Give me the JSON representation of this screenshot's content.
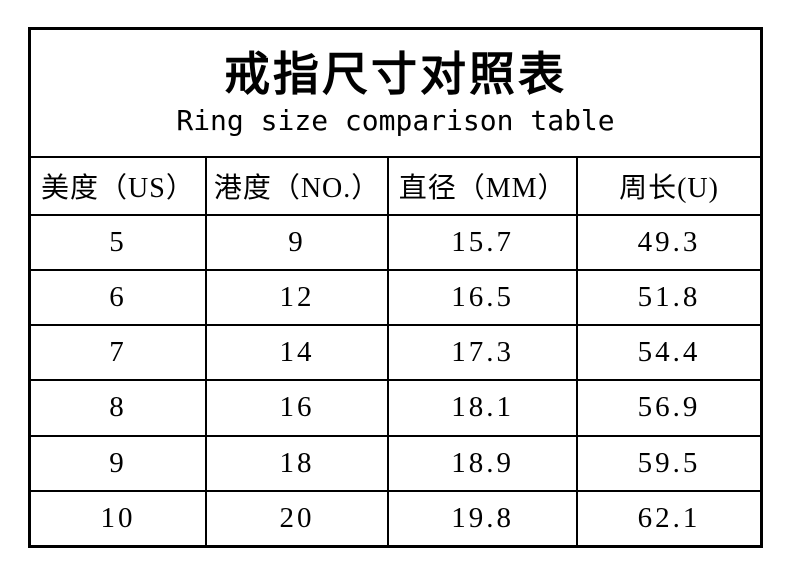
{
  "page": {
    "title_cn": "戒指尺寸对照表",
    "title_en": "Ring size comparison table"
  },
  "table": {
    "columns": [
      "美度（US）",
      "港度（NO.）",
      "直径（MM）",
      "周长(U)"
    ],
    "rows": [
      [
        "5",
        "9",
        "15.7",
        "49.3"
      ],
      [
        "6",
        "12",
        "16.5",
        "51.8"
      ],
      [
        "7",
        "14",
        "17.3",
        "54.4"
      ],
      [
        "8",
        "16",
        "18.1",
        "56.9"
      ],
      [
        "9",
        "18",
        "18.9",
        "59.5"
      ],
      [
        "10",
        "20",
        "19.8",
        "62.1"
      ]
    ]
  },
  "colors": {
    "border": "#000000",
    "text": "#000000",
    "background": "#ffffff"
  }
}
